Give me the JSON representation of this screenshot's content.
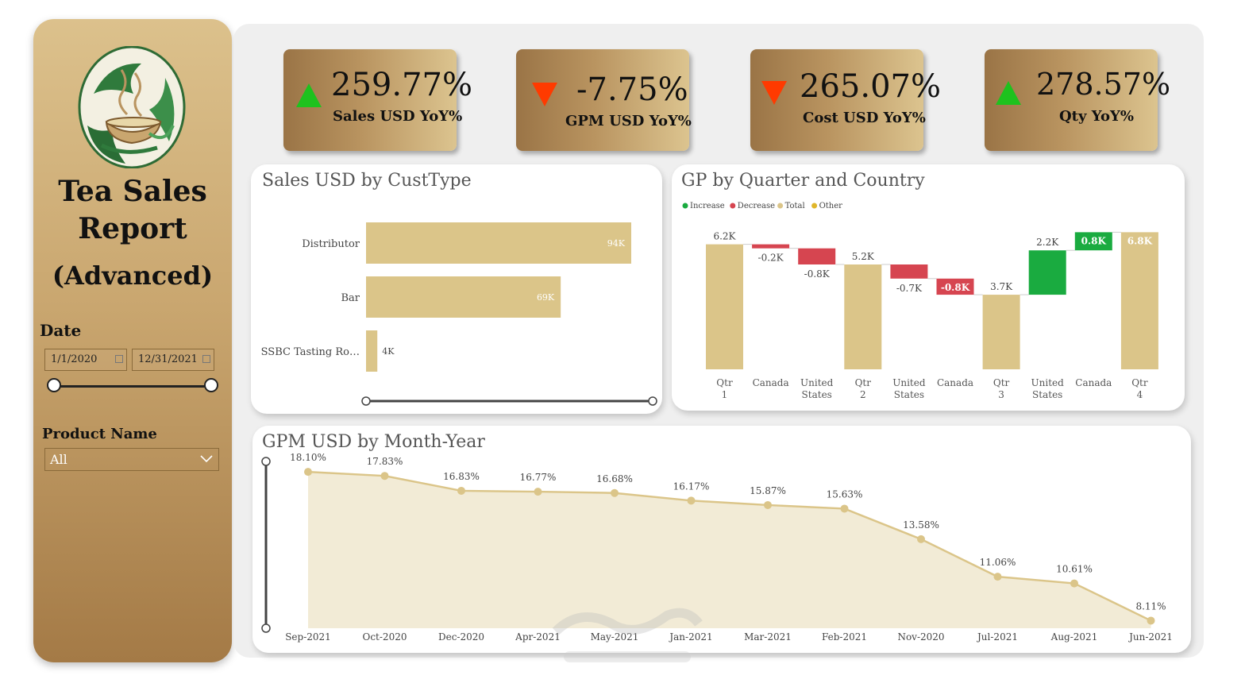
{
  "sidebar": {
    "title_line1": "Tea Sales",
    "title_line2": "Report",
    "title_line3": "(Advanced)",
    "date_label": "Date",
    "date_start": "1/1/2020",
    "date_end": "12/31/2021",
    "product_label": "Product Name",
    "product_value": "All"
  },
  "kpis": [
    {
      "value": "259.77%",
      "label": "Sales USD YoY%",
      "direction": "up",
      "color": "#1ec21e"
    },
    {
      "value": "-7.75%",
      "label": "GPM USD YoY%",
      "direction": "down",
      "color": "#ff3a00"
    },
    {
      "value": "265.07%",
      "label": "Cost USD YoY%",
      "direction": "down",
      "color": "#ff3a00"
    },
    {
      "value": "278.57%",
      "label": "Qty YoY%",
      "direction": "up",
      "color": "#1ec21e"
    }
  ],
  "custtype_card": {
    "title": "Sales USD by CustType",
    "chart_data": {
      "type": "bar",
      "orientation": "horizontal",
      "categories": [
        "Distributor",
        "Bar",
        "SSBC Tasting Ro…"
      ],
      "values": [
        94000,
        69000,
        4000
      ],
      "value_labels": [
        "94K",
        "69K",
        "4K"
      ],
      "color": "#dbc589"
    }
  },
  "gp_card": {
    "title": "GP by Quarter and Country",
    "legend": [
      {
        "label": "Increase",
        "color": "#1aab40"
      },
      {
        "label": "Decrease",
        "color": "#d64550"
      },
      {
        "label": "Total",
        "color": "#dbc589"
      },
      {
        "label": "Other",
        "color": "#e0b62a"
      }
    ],
    "chart_data": {
      "type": "bar",
      "subtype": "waterfall",
      "ylim": [
        0,
        7.8
      ],
      "categories": [
        "Qtr 1",
        "Canada",
        "United States",
        "Qtr 2",
        "United States",
        "Canada",
        "Qtr 3",
        "United States",
        "Canada",
        "Qtr 4"
      ],
      "bars": [
        {
          "kind": "total",
          "start": 0,
          "end": 6.2,
          "label": "6.2K"
        },
        {
          "kind": "decrease",
          "start": 6.2,
          "end": 6.0,
          "label": "-0.2K"
        },
        {
          "kind": "decrease",
          "start": 6.0,
          "end": 5.2,
          "label": "-0.8K"
        },
        {
          "kind": "total",
          "start": 0,
          "end": 5.2,
          "label": "5.2K"
        },
        {
          "kind": "decrease",
          "start": 5.2,
          "end": 4.5,
          "label": "-0.7K"
        },
        {
          "kind": "decrease",
          "start": 4.5,
          "end": 3.7,
          "label": "-0.8K"
        },
        {
          "kind": "total",
          "start": 0,
          "end": 3.7,
          "label": "3.7K"
        },
        {
          "kind": "increase",
          "start": 3.7,
          "end": 5.9,
          "label": "2.2K"
        },
        {
          "kind": "increase",
          "start": 5.9,
          "end": 6.8,
          "label": "0.8K"
        },
        {
          "kind": "total",
          "start": 0,
          "end": 6.8,
          "label": "6.8K"
        }
      ]
    }
  },
  "gpm_card": {
    "title": "GPM USD by Month-Year",
    "chart_data": {
      "type": "area",
      "x": [
        "Sep-2021",
        "Oct-2020",
        "Dec-2020",
        "Apr-2021",
        "May-2021",
        "Jan-2021",
        "Mar-2021",
        "Feb-2021",
        "Nov-2020",
        "Jul-2021",
        "Aug-2021",
        "Jun-2021"
      ],
      "values": [
        18.1,
        17.83,
        16.83,
        16.77,
        16.68,
        16.17,
        15.87,
        15.63,
        13.58,
        11.06,
        10.61,
        8.11
      ],
      "value_labels": [
        "18.10%",
        "17.83%",
        "16.83%",
        "16.77%",
        "16.68%",
        "16.17%",
        "15.87%",
        "15.63%",
        "13.58%",
        "11.06%",
        "10.61%",
        "8.11%"
      ],
      "ylim": [
        7.6,
        19.6
      ],
      "color": "#dbc589"
    }
  },
  "colors": {
    "gold_bar": "#dbc589",
    "increase": "#1aab40",
    "decrease": "#d64550"
  }
}
